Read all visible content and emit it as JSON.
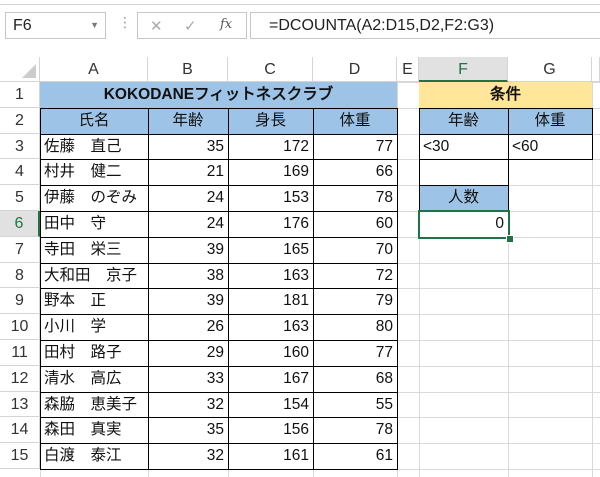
{
  "name_box": "F6",
  "formula": "=DCOUNTA(A2:D15,D2,F2:G3)",
  "icons": {
    "cancel": "✕",
    "enter": "✓",
    "fx": "fx"
  },
  "columns": [
    "A",
    "B",
    "C",
    "D",
    "E",
    "F",
    "G"
  ],
  "rows": [
    "1",
    "2",
    "3",
    "4",
    "5",
    "6",
    "7",
    "8",
    "9",
    "10",
    "11",
    "12",
    "13",
    "14",
    "15"
  ],
  "selected_cell": "F6",
  "colors": {
    "header_fill": "#9dc3e6",
    "criteria_fill": "#ffe699",
    "selection": "#217346"
  },
  "table": {
    "title": "KOKODANEフィットネスクラブ",
    "headers": [
      "氏名",
      "年齢",
      "身長",
      "体重"
    ],
    "records": [
      [
        "佐藤　直己",
        "35",
        "172",
        "77"
      ],
      [
        "村井　健二",
        "21",
        "169",
        "66"
      ],
      [
        "伊藤　のぞみ",
        "24",
        "153",
        "78"
      ],
      [
        "田中　守",
        "24",
        "176",
        "60"
      ],
      [
        "寺田　栄三",
        "39",
        "165",
        "70"
      ],
      [
        "大和田　京子",
        "38",
        "163",
        "72"
      ],
      [
        "野本　正",
        "39",
        "181",
        "79"
      ],
      [
        "小川　学",
        "26",
        "163",
        "80"
      ],
      [
        "田村　路子",
        "29",
        "160",
        "77"
      ],
      [
        "清水　高広",
        "33",
        "167",
        "68"
      ],
      [
        "森脇　恵美子",
        "32",
        "154",
        "55"
      ],
      [
        "森田　真実",
        "35",
        "156",
        "78"
      ],
      [
        "白渡　泰江",
        "32",
        "161",
        "61"
      ]
    ]
  },
  "criteria": {
    "title": "条件",
    "headers": [
      "年齢",
      "体重"
    ],
    "values": [
      "<30",
      "<60"
    ]
  },
  "result": {
    "label": "人数",
    "value": "0"
  }
}
